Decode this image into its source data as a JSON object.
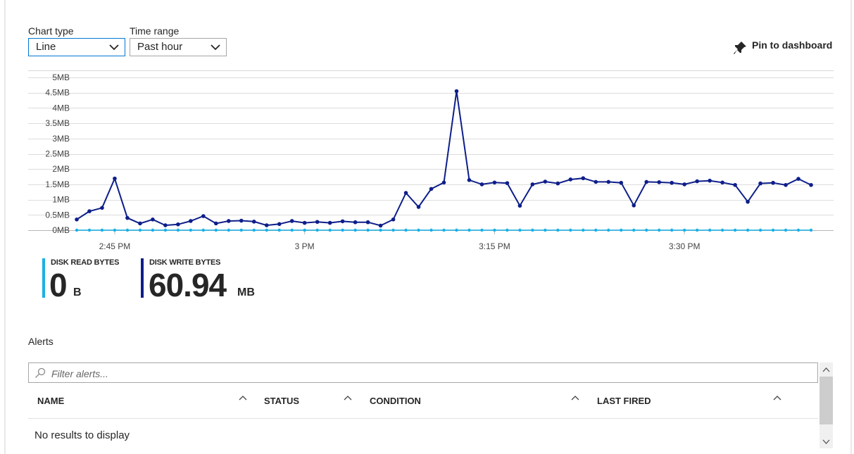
{
  "controls": {
    "chart_type_label": "Chart type",
    "chart_type_value": "Line",
    "time_range_label": "Time range",
    "time_range_value": "Past hour",
    "pin_label": "Pin to dashboard"
  },
  "legend": [
    {
      "name": "DISK READ BYTES",
      "value": "0",
      "unit": "B",
      "color": "#1ab0e3"
    },
    {
      "name": "DISK WRITE BYTES",
      "value": "60.94",
      "unit": "MB",
      "color": "#0e1e8a"
    }
  ],
  "chart_data": {
    "type": "line",
    "y_unit": "MB",
    "ylim": [
      0,
      5
    ],
    "yticks": [
      "0MB",
      "0.5MB",
      "1MB",
      "1.5MB",
      "2MB",
      "2.5MB",
      "3MB",
      "3.5MB",
      "4MB",
      "4.5MB",
      "5MB"
    ],
    "xticks": [
      "2:45 PM",
      "3 PM",
      "3:15 PM",
      "3:30 PM"
    ],
    "grid": true,
    "series": [
      {
        "name": "DISK WRITE BYTES",
        "color": "#0e1e8a",
        "values": [
          0.35,
          0.62,
          0.73,
          1.69,
          0.4,
          0.22,
          0.35,
          0.16,
          0.19,
          0.3,
          0.46,
          0.22,
          0.3,
          0.31,
          0.28,
          0.16,
          0.2,
          0.3,
          0.24,
          0.27,
          0.24,
          0.29,
          0.26,
          0.26,
          0.15,
          0.35,
          1.22,
          0.76,
          1.35,
          1.56,
          4.55,
          1.64,
          1.5,
          1.56,
          1.54,
          0.8,
          1.5,
          1.59,
          1.53,
          1.66,
          1.7,
          1.58,
          1.58,
          1.55,
          0.81,
          1.58,
          1.57,
          1.55,
          1.5,
          1.6,
          1.62,
          1.56,
          1.48,
          0.93,
          1.53,
          1.55,
          1.48,
          1.68,
          1.48
        ]
      },
      {
        "name": "DISK READ BYTES",
        "color": "#1ab0e3",
        "values": [
          0,
          0,
          0,
          0,
          0,
          0,
          0,
          0,
          0,
          0,
          0,
          0,
          0,
          0,
          0,
          0,
          0,
          0,
          0,
          0,
          0,
          0,
          0,
          0,
          0,
          0,
          0,
          0,
          0,
          0,
          0,
          0,
          0,
          0,
          0,
          0,
          0,
          0,
          0,
          0,
          0,
          0,
          0,
          0,
          0,
          0,
          0,
          0,
          0,
          0,
          0,
          0,
          0,
          0,
          0,
          0,
          0,
          0,
          0
        ]
      }
    ]
  },
  "alerts": {
    "title": "Alerts",
    "filter_placeholder": "Filter alerts...",
    "columns": [
      "NAME",
      "STATUS",
      "CONDITION",
      "LAST FIRED"
    ],
    "empty_message": "No results to display"
  }
}
